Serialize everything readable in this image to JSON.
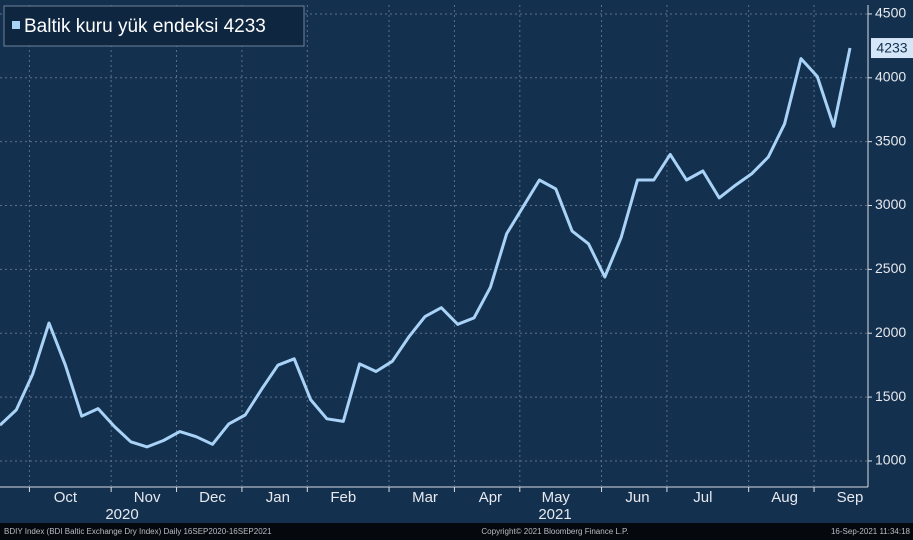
{
  "chart_data": {
    "type": "line",
    "categories": [
      null,
      null,
      null,
      null,
      "Oct",
      null,
      null,
      null,
      null,
      "Nov",
      null,
      null,
      null,
      "Dec",
      null,
      null,
      null,
      "Jan",
      null,
      null,
      null,
      "Feb",
      null,
      null,
      null,
      null,
      "Mar",
      null,
      null,
      null,
      "Apr",
      null,
      null,
      null,
      "May",
      null,
      null,
      null,
      null,
      "Jun",
      null,
      null,
      null,
      "Jul",
      null,
      null,
      null,
      null,
      "Aug",
      null,
      null,
      null,
      "Sep"
    ],
    "years": [
      "2020",
      "2021"
    ],
    "series": [
      {
        "name": "Baltik kuru yük endeksi 4233",
        "color": "#a9d2f7",
        "values": [
          1280,
          1400,
          1680,
          2080,
          1750,
          1350,
          1410,
          1270,
          1150,
          1110,
          1160,
          1230,
          1190,
          1130,
          1290,
          1360,
          1560,
          1750,
          1800,
          1480,
          1330,
          1310,
          1760,
          1700,
          1780,
          1970,
          2130,
          2200,
          2070,
          2120,
          2360,
          2780,
          2990,
          3200,
          3130,
          2800,
          2700,
          2440,
          2750,
          3200,
          3200,
          3400,
          3200,
          3270,
          3060,
          3160,
          3250,
          3380,
          3640,
          4150,
          4010,
          3620,
          4233
        ]
      }
    ],
    "ylim": [
      796,
      4570
    ],
    "yticks": [
      1000,
      1500,
      2000,
      2500,
      3000,
      3500,
      4000,
      4500
    ],
    "grid": true,
    "footer": {
      "left": "BDIY Index (BDI Baltic Exchange Dry Index)  Daily 16SEP2020-16SEP2021",
      "center": "Copyright© 2021 Bloomberg Finance L.P.",
      "right": "16-Sep-2021 11:34:18"
    }
  }
}
